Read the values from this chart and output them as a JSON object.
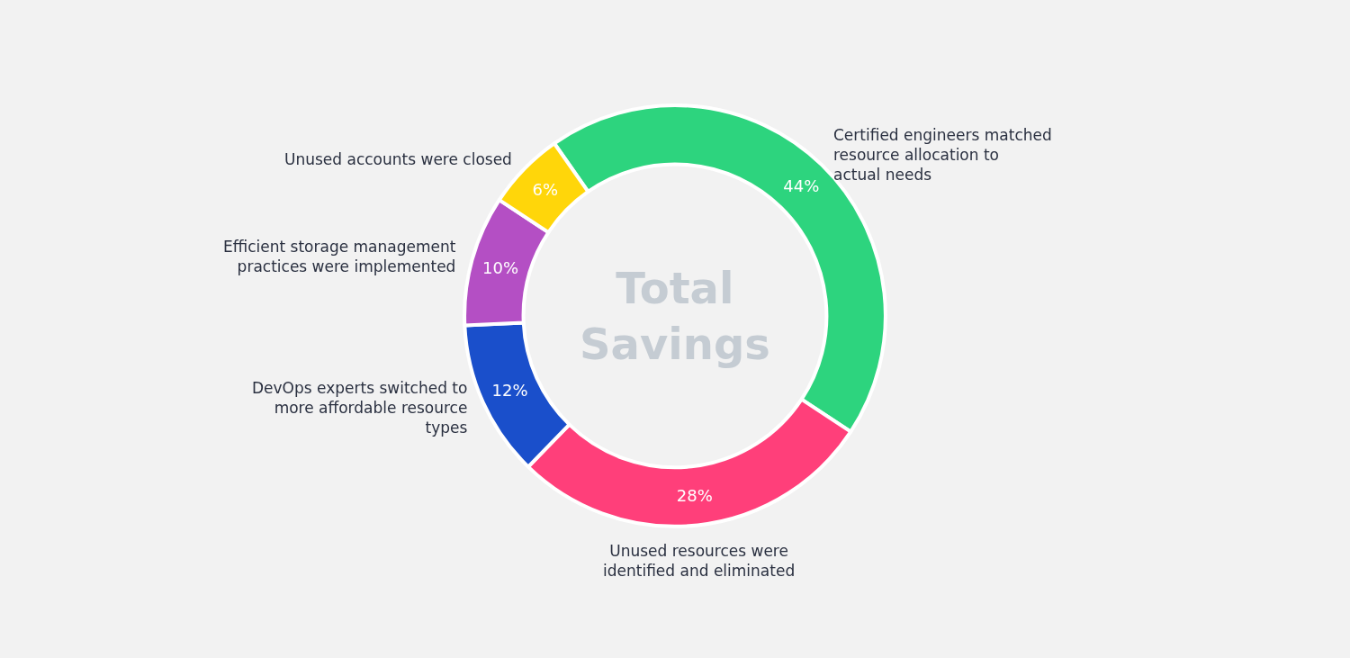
{
  "chart_data": {
    "type": "donut",
    "title": "Total Savings",
    "categories": [
      "Certified engineers matched resource allocation to actual needs",
      "Unused resources were identified and eliminated",
      "DevOps experts switched to more affordable resource types",
      "Efficient storage management practices were implemented",
      "Unused accounts were closed"
    ],
    "values": [
      44,
      28,
      12,
      10,
      6
    ],
    "colors": [
      "#2dd47e",
      "#ff3f7a",
      "#1a4fcb",
      "#b44fc4",
      "#ffd60a"
    ],
    "value_labels": [
      "44%",
      "28%",
      "12%",
      "10%",
      "6%"
    ]
  }
}
